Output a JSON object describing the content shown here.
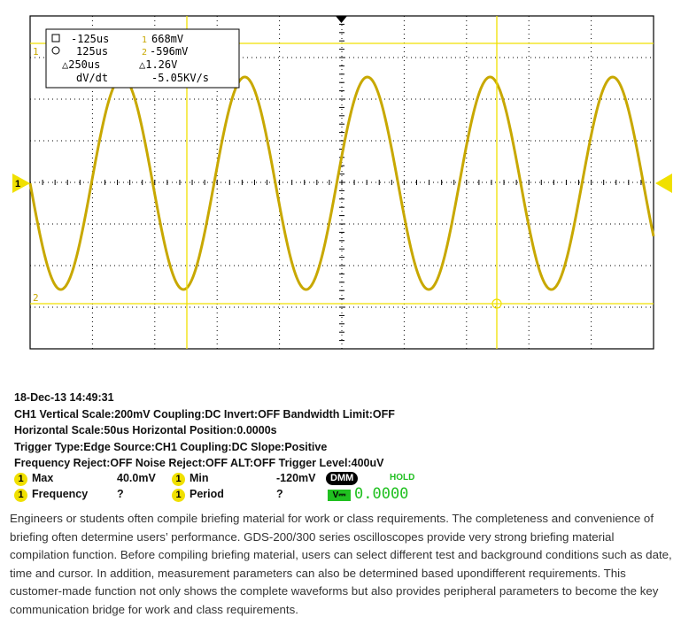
{
  "scope": {
    "cursor_box": {
      "line1_symbol": "□",
      "line1_time": "-125us",
      "line1_ch": "1",
      "line1_volt": "668mV",
      "line2_symbol": "○",
      "line2_time": "125us",
      "line2_ch": "2",
      "line2_volt": "-596mV",
      "line3_time": "△250us",
      "line3_volt": "△1.26V",
      "line4_label": "dV/dt",
      "line4_value": "-5.05KV/s"
    },
    "marker_left": "1",
    "marker_cursor1": "1",
    "marker_cursor2": "2",
    "trace_color": "#c8a800",
    "cursor_color": "#f0e000",
    "grid_color": "#000000"
  },
  "info": {
    "date": "18-Dec-13 14:49:31",
    "ch1": "CH1  Vertical Scale:200mV Coupling:DC Invert:OFF Bandwidth Limit:OFF",
    "horizontal": "Horizontal Scale:50us Horizontal Position:0.0000s",
    "trigger": "Trigger Type:Edge Source:CH1 Coupling:DC Slope:Positive",
    "reject": "Frequency Reject:OFF Noise Reject:OFF ALT:OFF Trigger Level:400uV",
    "meas": {
      "badge": "1",
      "max_label": "Max",
      "max_value": "40.0mV",
      "min_label": "Min",
      "min_value": "-120mV",
      "freq_label": "Frequency",
      "freq_value": "?",
      "period_label": "Period",
      "period_value": "?",
      "dmm": "DMM",
      "hold": "HOLD",
      "v_icon": "V⎓",
      "dmm_value": "0.0000"
    }
  },
  "description": "Engineers or students often compile briefing material for work or class requirements. The completeness and convenience of briefing often determine users’ performance. GDS-200/300 series oscilloscopes provide very strong briefing material compilation function. Before compiling briefing material, users can select different test and background conditions such as date, time and cursor. In addition, measurement parameters can also be determined based upondifferent requirements. This customer-made function not only shows the complete waveforms but also provides peripheral parameters to become the key communication bridge for work and class requirements."
}
